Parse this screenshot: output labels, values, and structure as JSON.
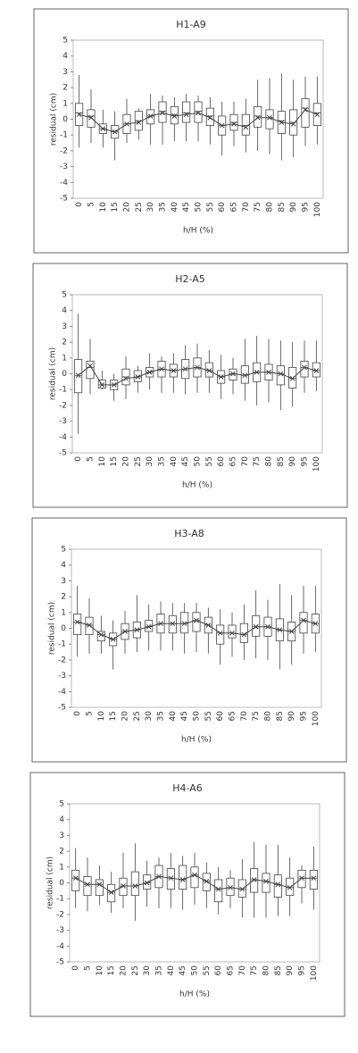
{
  "chart_data": [
    {
      "type": "box",
      "title": "H1-A9",
      "x_label": "h/H (%)",
      "y_label": "residual (cm)",
      "color": "#444444",
      "categories": [
        "0",
        "5",
        "10",
        "15",
        "20",
        "25",
        "30",
        "35",
        "40",
        "45",
        "50",
        "55",
        "60",
        "65",
        "70",
        "75",
        "80",
        "85",
        "90",
        "95",
        "100"
      ],
      "ylim": [
        -5,
        5
      ],
      "yticks": [
        -5,
        -4,
        -3,
        -2,
        -1,
        0,
        1,
        2,
        3,
        4,
        5
      ],
      "whislo": [
        -1.8,
        -1.5,
        -1.8,
        -2.6,
        -1.5,
        -1.3,
        -1.6,
        -1.6,
        -1.4,
        -1.4,
        -1.4,
        -1.6,
        -2.3,
        -1.7,
        -2.1,
        -2.0,
        -2.2,
        -2.6,
        -2.4,
        -1.7,
        -1.6
      ],
      "q1": [
        -0.4,
        -0.5,
        -0.9,
        -1.2,
        -0.9,
        -0.7,
        -0.3,
        -0.2,
        -0.3,
        -0.2,
        -0.2,
        -0.4,
        -1.0,
        -0.7,
        -1.0,
        -0.5,
        -0.6,
        -0.9,
        -1.0,
        -0.5,
        -0.4
      ],
      "med": [
        0.4,
        0.2,
        -0.6,
        -0.8,
        -0.3,
        -0.1,
        0.2,
        0.5,
        0.3,
        0.4,
        0.5,
        0.2,
        -0.4,
        -0.2,
        -0.4,
        0.2,
        0.1,
        -0.1,
        -0.2,
        0.7,
        0.4
      ],
      "q3": [
        1.0,
        0.6,
        -0.3,
        -0.4,
        0.3,
        0.5,
        0.6,
        1.1,
        0.8,
        1.1,
        1.1,
        0.7,
        0.2,
        0.3,
        0.3,
        0.8,
        0.6,
        0.5,
        0.6,
        1.3,
        1.0
      ],
      "whishi": [
        2.8,
        1.9,
        0.6,
        0.5,
        1.3,
        0.7,
        1.6,
        1.5,
        1.4,
        1.6,
        1.5,
        1.4,
        1.1,
        1.1,
        1.3,
        2.5,
        2.6,
        2.9,
        2.5,
        2.7,
        2.7
      ],
      "mean": [
        0.3,
        0.1,
        -0.6,
        -0.8,
        -0.3,
        -0.2,
        0.2,
        0.4,
        0.2,
        0.3,
        0.4,
        0.1,
        -0.4,
        -0.3,
        -0.5,
        0.1,
        0.1,
        -0.2,
        -0.3,
        0.6,
        0.3
      ]
    },
    {
      "type": "box",
      "title": "H2-A5",
      "x_label": "h/H (%)",
      "y_label": "residual (cm)",
      "color": "#444444",
      "categories": [
        "0",
        "5",
        "10",
        "15",
        "20",
        "25",
        "30",
        "35",
        "40",
        "45",
        "50",
        "55",
        "60",
        "65",
        "70",
        "75",
        "80",
        "85",
        "90",
        "95",
        "100"
      ],
      "ylim": [
        -5,
        5
      ],
      "yticks": [
        -5,
        -4,
        -3,
        -2,
        -1,
        0,
        1,
        2,
        3,
        4,
        5
      ],
      "whislo": [
        -3.8,
        -1.3,
        -1.0,
        -1.7,
        -1.6,
        -1.2,
        -1.0,
        -1.2,
        -1.2,
        -1.3,
        -1.2,
        -1.2,
        -1.6,
        -1.3,
        -1.7,
        -2.0,
        -1.8,
        -2.3,
        -2.1,
        -1.2,
        -1.1
      ],
      "q1": [
        -1.2,
        -0.3,
        -0.9,
        -1.0,
        -0.7,
        -0.5,
        -0.2,
        -0.2,
        -0.2,
        -0.3,
        -0.2,
        -0.2,
        -0.6,
        -0.4,
        -0.6,
        -0.5,
        -0.4,
        -0.7,
        -0.9,
        -0.2,
        -0.2
      ],
      "med": [
        -0.1,
        0.4,
        -0.7,
        -0.7,
        -0.2,
        -0.2,
        0.1,
        0.3,
        0.2,
        0.3,
        0.4,
        0.2,
        -0.2,
        0.0,
        -0.1,
        0.1,
        0.1,
        0.0,
        -0.3,
        0.4,
        0.2
      ],
      "q3": [
        0.9,
        0.8,
        -0.4,
        -0.4,
        0.3,
        0.2,
        0.4,
        0.8,
        0.6,
        0.9,
        1.0,
        0.7,
        0.2,
        0.3,
        0.5,
        0.7,
        0.6,
        0.5,
        0.4,
        0.8,
        0.7
      ],
      "whishi": [
        3.8,
        2.2,
        0.2,
        0.0,
        1.1,
        0.5,
        1.3,
        1.1,
        1.3,
        1.8,
        1.9,
        1.5,
        1.2,
        1.0,
        2.2,
        2.4,
        2.2,
        2.1,
        2.0,
        2.1,
        2.1
      ],
      "mean": [
        -0.1,
        0.5,
        -0.7,
        -0.7,
        -0.3,
        -0.2,
        0.1,
        0.3,
        0.2,
        0.3,
        0.4,
        0.2,
        -0.2,
        0.0,
        -0.1,
        0.1,
        0.1,
        0.0,
        -0.3,
        0.4,
        0.2
      ]
    },
    {
      "type": "box",
      "title": "H3-A8",
      "x_label": "h/H (%)",
      "y_label": "residual (cm)",
      "color": "#444444",
      "categories": [
        "0",
        "5",
        "10",
        "15",
        "20",
        "25",
        "30",
        "35",
        "40",
        "45",
        "50",
        "55",
        "60",
        "65",
        "70",
        "75",
        "80",
        "85",
        "90",
        "95",
        "100"
      ],
      "ylim": [
        -5,
        5
      ],
      "yticks": [
        -5,
        -4,
        -3,
        -2,
        -1,
        0,
        1,
        2,
        3,
        4,
        5
      ],
      "whislo": [
        -1.8,
        -1.6,
        -1.6,
        -2.6,
        -1.6,
        -1.5,
        -1.4,
        -1.4,
        -1.4,
        -1.6,
        -1.5,
        -1.6,
        -2.3,
        -1.8,
        -2.0,
        -1.9,
        -2.0,
        -2.6,
        -2.3,
        -1.6,
        -1.5
      ],
      "q1": [
        -0.4,
        -0.4,
        -0.8,
        -1.1,
        -0.7,
        -0.6,
        -0.2,
        -0.3,
        -0.3,
        -0.3,
        -0.2,
        -0.3,
        -1.0,
        -0.6,
        -0.9,
        -0.5,
        -0.5,
        -0.8,
        -0.8,
        -0.3,
        -0.3
      ],
      "med": [
        0.4,
        0.2,
        -0.4,
        -0.7,
        -0.2,
        -0.1,
        0.1,
        0.3,
        0.3,
        0.3,
        0.5,
        0.2,
        -0.3,
        -0.3,
        -0.4,
        0.1,
        0.1,
        -0.1,
        -0.2,
        0.5,
        0.3
      ],
      "q3": [
        0.9,
        0.7,
        -0.2,
        -0.3,
        0.3,
        0.4,
        0.5,
        0.9,
        0.8,
        1.0,
        1.0,
        0.7,
        0.2,
        0.2,
        0.3,
        0.8,
        0.7,
        0.6,
        0.4,
        1.0,
        0.9
      ],
      "whishi": [
        2.7,
        1.9,
        0.8,
        0.5,
        1.1,
        2.1,
        1.5,
        1.7,
        1.6,
        1.6,
        1.6,
        1.3,
        1.2,
        1.0,
        1.5,
        2.4,
        1.8,
        2.8,
        2.1,
        2.7,
        2.7
      ],
      "mean": [
        0.4,
        0.2,
        -0.4,
        -0.7,
        -0.2,
        -0.1,
        0.1,
        0.3,
        0.3,
        0.3,
        0.5,
        0.2,
        -0.3,
        -0.3,
        -0.4,
        0.1,
        0.1,
        -0.1,
        -0.2,
        0.5,
        0.3
      ]
    },
    {
      "type": "box",
      "title": "H4-A6",
      "x_label": "h/H (%)",
      "y_label": "residual (cm)",
      "color": "#444444",
      "categories": [
        "0",
        "5",
        "10",
        "15",
        "20",
        "25",
        "30",
        "35",
        "40",
        "45",
        "50",
        "55",
        "60",
        "65",
        "70",
        "75",
        "80",
        "85",
        "90",
        "95",
        "100"
      ],
      "ylim": [
        -5,
        5
      ],
      "yticks": [
        -5,
        -4,
        -3,
        -2,
        -1,
        0,
        1,
        2,
        3,
        4,
        5
      ],
      "whislo": [
        -1.6,
        -1.8,
        -1.4,
        -1.9,
        -1.6,
        -2.4,
        -1.5,
        -1.6,
        -1.6,
        -1.7,
        -1.4,
        -1.6,
        -2.0,
        -1.6,
        -2.2,
        -2.2,
        -2.2,
        -2.1,
        -2.1,
        -1.3,
        -1.7
      ],
      "q1": [
        -0.5,
        -0.8,
        -0.8,
        -1.2,
        -0.8,
        -0.8,
        -0.4,
        -0.3,
        -0.4,
        -0.4,
        -0.3,
        -0.5,
        -1.2,
        -0.8,
        -0.9,
        -0.6,
        -0.6,
        -0.9,
        -0.8,
        -0.3,
        -0.4
      ],
      "med": [
        0.3,
        -0.1,
        -0.1,
        -0.6,
        -0.2,
        -0.2,
        0.0,
        0.4,
        0.3,
        0.2,
        0.5,
        0.1,
        -0.4,
        -0.3,
        -0.4,
        0.2,
        0.1,
        -0.1,
        -0.3,
        0.3,
        0.3
      ],
      "q3": [
        0.8,
        0.4,
        0.2,
        -0.1,
        0.3,
        0.7,
        0.5,
        1.1,
        0.9,
        1.1,
        1.0,
        0.6,
        0.2,
        0.3,
        0.2,
        0.9,
        0.6,
        0.5,
        0.3,
        0.8,
        0.8
      ],
      "whishi": [
        2.2,
        1.6,
        1.1,
        0.7,
        1.9,
        2.5,
        1.4,
        1.6,
        1.9,
        1.7,
        1.9,
        1.3,
        1.0,
        0.8,
        1.5,
        2.6,
        2.4,
        2.4,
        1.6,
        1.1,
        2.3
      ],
      "mean": [
        0.3,
        -0.1,
        -0.1,
        -0.6,
        -0.2,
        -0.2,
        0.0,
        0.4,
        0.3,
        0.2,
        0.5,
        0.1,
        -0.4,
        -0.3,
        -0.4,
        0.2,
        0.1,
        -0.1,
        -0.3,
        0.3,
        0.3
      ]
    }
  ]
}
